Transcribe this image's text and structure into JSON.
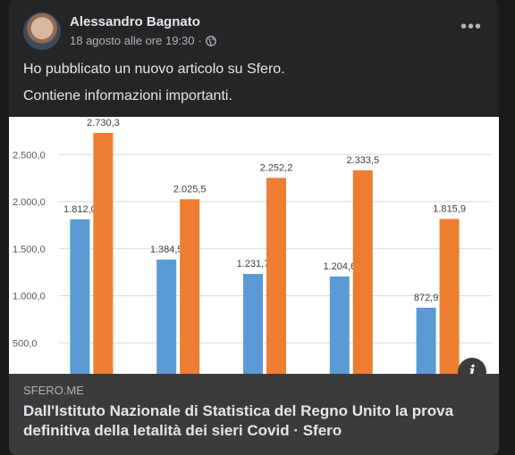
{
  "post": {
    "author": "Alessandro Bagnato",
    "timestamp": "18 agosto alle ore 19:30",
    "privacy_separator": "·",
    "more_label": "•••",
    "lines": [
      "Ho pubblicato un nuovo articolo su Sfero.",
      "Contiene informazioni importanti."
    ]
  },
  "link_preview": {
    "domain": "SFERO.ME",
    "title": "Dall'Istituto Nazionale di Statistica del Regno Unito la prova definitiva della letalità dei sieri Covid · Sfero",
    "info_label": "i"
  },
  "chart_data": {
    "type": "bar",
    "y_ticks": [
      "500,0",
      "1.000,0",
      "1.500,0",
      "2.000,0",
      "2.500,0"
    ],
    "y_tick_values": [
      500,
      1000,
      1500,
      2000,
      2500
    ],
    "ylim": [
      0,
      2700
    ],
    "grid": true,
    "series": [
      {
        "color": "#5b9bd5",
        "values": [
          1812.0,
          1384.5,
          1231.7,
          1204.6,
          872.9
        ],
        "labels": [
          "1.812,0",
          "1.384,5",
          "1.231,7",
          "1.204,6",
          "872,9"
        ]
      },
      {
        "color": "#ed7d31",
        "values": [
          2730.3,
          2025.5,
          2252.2,
          2333.5,
          1815.9
        ],
        "labels": [
          "2.730,3",
          "2.025,5",
          "2.252,2",
          "2.333,5",
          "1.815,9"
        ]
      }
    ]
  }
}
